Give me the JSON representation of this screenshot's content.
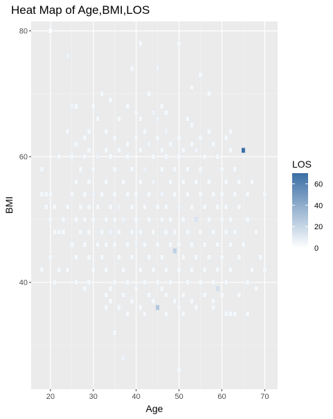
{
  "chart_data": {
    "type": "heatmap",
    "title": "Heat Map of Age,BMI,LOS",
    "xlabel": "Age",
    "ylabel": "BMI",
    "xlim": [
      15.5,
      73.0
    ],
    "ylim": [
      23.0,
      81.5
    ],
    "x_ticks": [
      20,
      30,
      40,
      50,
      60,
      70
    ],
    "y_ticks": [
      40,
      60,
      80
    ],
    "grid": true,
    "legend": {
      "title": "LOS",
      "placement": "right",
      "ticks": [
        0,
        20,
        40,
        60
      ],
      "range": [
        0,
        70
      ],
      "low_color": "#ffffff",
      "high_color": "#3a6ea5"
    },
    "cell_size": {
      "x_units": 1,
      "y_units": 1
    },
    "cells": [
      [
        20,
        80,
        0
      ],
      [
        41,
        78,
        1
      ],
      [
        50,
        78,
        1
      ],
      [
        24,
        76,
        2
      ],
      [
        39,
        74,
        1
      ],
      [
        45,
        74,
        2
      ],
      [
        55,
        73,
        1
      ],
      [
        53,
        71,
        1
      ],
      [
        32,
        70,
        1
      ],
      [
        43,
        70,
        1
      ],
      [
        57,
        70,
        1
      ],
      [
        34,
        69,
        1
      ],
      [
        38,
        68,
        1
      ],
      [
        46,
        68,
        1
      ],
      [
        25,
        68,
        2
      ],
      [
        26,
        68,
        1
      ],
      [
        30,
        68,
        1
      ],
      [
        40,
        67,
        1
      ],
      [
        44,
        67,
        2
      ],
      [
        47,
        67,
        1
      ],
      [
        31,
        66,
        1
      ],
      [
        36,
        66,
        1
      ],
      [
        41,
        66,
        1
      ],
      [
        45,
        66,
        2
      ],
      [
        52,
        66,
        1
      ],
      [
        53,
        65,
        1
      ],
      [
        24,
        64,
        1
      ],
      [
        29,
        64,
        1
      ],
      [
        33,
        64,
        1
      ],
      [
        42,
        64,
        1
      ],
      [
        47,
        64,
        2
      ],
      [
        57,
        64,
        1
      ],
      [
        62,
        64,
        1
      ],
      [
        28,
        63,
        1
      ],
      [
        35,
        63,
        1
      ],
      [
        40,
        63,
        1
      ],
      [
        45,
        63,
        1
      ],
      [
        50,
        63,
        1
      ],
      [
        55,
        63,
        1
      ],
      [
        61,
        63,
        1
      ],
      [
        26,
        62,
        1
      ],
      [
        38,
        62,
        1
      ],
      [
        43,
        62,
        2
      ],
      [
        48,
        62,
        1
      ],
      [
        53,
        62,
        1
      ],
      [
        58,
        62,
        1
      ],
      [
        29,
        61,
        1
      ],
      [
        33,
        61,
        1
      ],
      [
        36,
        61,
        1
      ],
      [
        41,
        61,
        1
      ],
      [
        46,
        61,
        1
      ],
      [
        51,
        61,
        1
      ],
      [
        54,
        61,
        2
      ],
      [
        65,
        61,
        70
      ],
      [
        62,
        61,
        1
      ],
      [
        22,
        60,
        1
      ],
      [
        25,
        60,
        1
      ],
      [
        28,
        60,
        1
      ],
      [
        31,
        60,
        2
      ],
      [
        34,
        60,
        1
      ],
      [
        38,
        60,
        1
      ],
      [
        44,
        60,
        1
      ],
      [
        47,
        60,
        1
      ],
      [
        50,
        60,
        1
      ],
      [
        56,
        60,
        1
      ],
      [
        59,
        60,
        1
      ],
      [
        18,
        58,
        1
      ],
      [
        27,
        58,
        1
      ],
      [
        30,
        58,
        1
      ],
      [
        35,
        58,
        1
      ],
      [
        39,
        58,
        1
      ],
      [
        42,
        58,
        2
      ],
      [
        46,
        58,
        1
      ],
      [
        49,
        58,
        1
      ],
      [
        52,
        58,
        1
      ],
      [
        55,
        58,
        1
      ],
      [
        60,
        58,
        1
      ],
      [
        63,
        58,
        1
      ],
      [
        26,
        56,
        1
      ],
      [
        29,
        56,
        1
      ],
      [
        33,
        56,
        1
      ],
      [
        37,
        56,
        1
      ],
      [
        41,
        56,
        1
      ],
      [
        44,
        56,
        2
      ],
      [
        48,
        56,
        1
      ],
      [
        51,
        56,
        1
      ],
      [
        54,
        56,
        1
      ],
      [
        57,
        56,
        1
      ],
      [
        61,
        56,
        1
      ],
      [
        64,
        56,
        1
      ],
      [
        67,
        56,
        1
      ],
      [
        18,
        54,
        1
      ],
      [
        19,
        54,
        1
      ],
      [
        20,
        54,
        1
      ],
      [
        25,
        54,
        1
      ],
      [
        28,
        54,
        1
      ],
      [
        30,
        54,
        2
      ],
      [
        32,
        54,
        1
      ],
      [
        35,
        54,
        1
      ],
      [
        38,
        54,
        1
      ],
      [
        40,
        54,
        1
      ],
      [
        43,
        54,
        1
      ],
      [
        46,
        54,
        2
      ],
      [
        49,
        54,
        1
      ],
      [
        52,
        54,
        1
      ],
      [
        55,
        54,
        1
      ],
      [
        58,
        54,
        1
      ],
      [
        60,
        54,
        1
      ],
      [
        63,
        54,
        1
      ],
      [
        66,
        54,
        1
      ],
      [
        70,
        54,
        1
      ],
      [
        19,
        52,
        1
      ],
      [
        21,
        52,
        1
      ],
      [
        24,
        52,
        1
      ],
      [
        27,
        52,
        1
      ],
      [
        29,
        52,
        1
      ],
      [
        31,
        52,
        1
      ],
      [
        34,
        52,
        1
      ],
      [
        36,
        52,
        2
      ],
      [
        39,
        52,
        1
      ],
      [
        42,
        52,
        1
      ],
      [
        45,
        52,
        1
      ],
      [
        47,
        52,
        1
      ],
      [
        50,
        52,
        2
      ],
      [
        53,
        52,
        1
      ],
      [
        56,
        52,
        1
      ],
      [
        59,
        52,
        1
      ],
      [
        61,
        52,
        1
      ],
      [
        64,
        52,
        1
      ],
      [
        20,
        50,
        1
      ],
      [
        23,
        50,
        1
      ],
      [
        26,
        50,
        1
      ],
      [
        28,
        50,
        1
      ],
      [
        30,
        50,
        1
      ],
      [
        33,
        50,
        1
      ],
      [
        35,
        50,
        1
      ],
      [
        37,
        50,
        2
      ],
      [
        40,
        50,
        1
      ],
      [
        43,
        50,
        1
      ],
      [
        46,
        50,
        1
      ],
      [
        48,
        50,
        1
      ],
      [
        51,
        50,
        1
      ],
      [
        54,
        50,
        6
      ],
      [
        57,
        50,
        1
      ],
      [
        60,
        50,
        1
      ],
      [
        62,
        50,
        1
      ],
      [
        66,
        50,
        1
      ],
      [
        21,
        48,
        1
      ],
      [
        22,
        48,
        1
      ],
      [
        23,
        48,
        1
      ],
      [
        27,
        48,
        1
      ],
      [
        29,
        48,
        1
      ],
      [
        32,
        48,
        1
      ],
      [
        34,
        48,
        2
      ],
      [
        36,
        48,
        1
      ],
      [
        39,
        48,
        1
      ],
      [
        41,
        48,
        1
      ],
      [
        44,
        48,
        1
      ],
      [
        47,
        48,
        1
      ],
      [
        49,
        48,
        1
      ],
      [
        52,
        48,
        1
      ],
      [
        55,
        48,
        1
      ],
      [
        58,
        48,
        1
      ],
      [
        61,
        48,
        1
      ],
      [
        63,
        48,
        1
      ],
      [
        68,
        48,
        1
      ],
      [
        25,
        46,
        1
      ],
      [
        28,
        46,
        1
      ],
      [
        31,
        46,
        1
      ],
      [
        33,
        46,
        1
      ],
      [
        35,
        46,
        1
      ],
      [
        38,
        46,
        1
      ],
      [
        40,
        46,
        2
      ],
      [
        42,
        46,
        1
      ],
      [
        45,
        46,
        1
      ],
      [
        48,
        46,
        1
      ],
      [
        50,
        46,
        1
      ],
      [
        53,
        46,
        1
      ],
      [
        56,
        46,
        1
      ],
      [
        59,
        46,
        1
      ],
      [
        62,
        46,
        1
      ],
      [
        65,
        46,
        1
      ],
      [
        20,
        44,
        1
      ],
      [
        26,
        44,
        1
      ],
      [
        29,
        44,
        1
      ],
      [
        32,
        44,
        1
      ],
      [
        36,
        44,
        1
      ],
      [
        39,
        44,
        1
      ],
      [
        43,
        44,
        1
      ],
      [
        46,
        44,
        1
      ],
      [
        49,
        45,
        14
      ],
      [
        51,
        44,
        1
      ],
      [
        54,
        44,
        1
      ],
      [
        57,
        44,
        1
      ],
      [
        60,
        44,
        1
      ],
      [
        64,
        44,
        1
      ],
      [
        69,
        44,
        1
      ],
      [
        18,
        42,
        1
      ],
      [
        22,
        42,
        1
      ],
      [
        24,
        42,
        1
      ],
      [
        30,
        42,
        1
      ],
      [
        33,
        42,
        1
      ],
      [
        37,
        42,
        1
      ],
      [
        41,
        42,
        1
      ],
      [
        44,
        42,
        1
      ],
      [
        47,
        42,
        1
      ],
      [
        50,
        42,
        1
      ],
      [
        53,
        42,
        1
      ],
      [
        56,
        42,
        1
      ],
      [
        59,
        42,
        1
      ],
      [
        62,
        42,
        1
      ],
      [
        67,
        42,
        1
      ],
      [
        70,
        42,
        1
      ],
      [
        21,
        40,
        1
      ],
      [
        26,
        40,
        1
      ],
      [
        29,
        40,
        1
      ],
      [
        35,
        40,
        1
      ],
      [
        38,
        40,
        1
      ],
      [
        42,
        40,
        1
      ],
      [
        45,
        40,
        1
      ],
      [
        48,
        40,
        1
      ],
      [
        52,
        40,
        1
      ],
      [
        55,
        40,
        1
      ],
      [
        58,
        40,
        1
      ],
      [
        61,
        40,
        1
      ],
      [
        66,
        40,
        1
      ],
      [
        28,
        39,
        1
      ],
      [
        34,
        39,
        1
      ],
      [
        40,
        39,
        1
      ],
      [
        46,
        39,
        1
      ],
      [
        59,
        39,
        8
      ],
      [
        68,
        39,
        1
      ],
      [
        33,
        38,
        1
      ],
      [
        37,
        38,
        1
      ],
      [
        43,
        38,
        1
      ],
      [
        47,
        38,
        1
      ],
      [
        51,
        38,
        1
      ],
      [
        56,
        38,
        1
      ],
      [
        60,
        38,
        1
      ],
      [
        64,
        38,
        1
      ],
      [
        34,
        37,
        1
      ],
      [
        39,
        37,
        1
      ],
      [
        44,
        37,
        1
      ],
      [
        49,
        37,
        1
      ],
      [
        53,
        37,
        1
      ],
      [
        58,
        37,
        1
      ],
      [
        33,
        36,
        1
      ],
      [
        36,
        36,
        1
      ],
      [
        41,
        36,
        1
      ],
      [
        45,
        36,
        18
      ],
      [
        50,
        36,
        1
      ],
      [
        54,
        36,
        1
      ],
      [
        58,
        36,
        1
      ],
      [
        61,
        35,
        1
      ],
      [
        62,
        35,
        1
      ],
      [
        63,
        35,
        1
      ],
      [
        66,
        35,
        1
      ],
      [
        38,
        35,
        1
      ],
      [
        42,
        35,
        1
      ],
      [
        47,
        35,
        1
      ],
      [
        51,
        35,
        1
      ],
      [
        35,
        32,
        1
      ],
      [
        37,
        28,
        2
      ],
      [
        50,
        26,
        1
      ]
    ]
  }
}
